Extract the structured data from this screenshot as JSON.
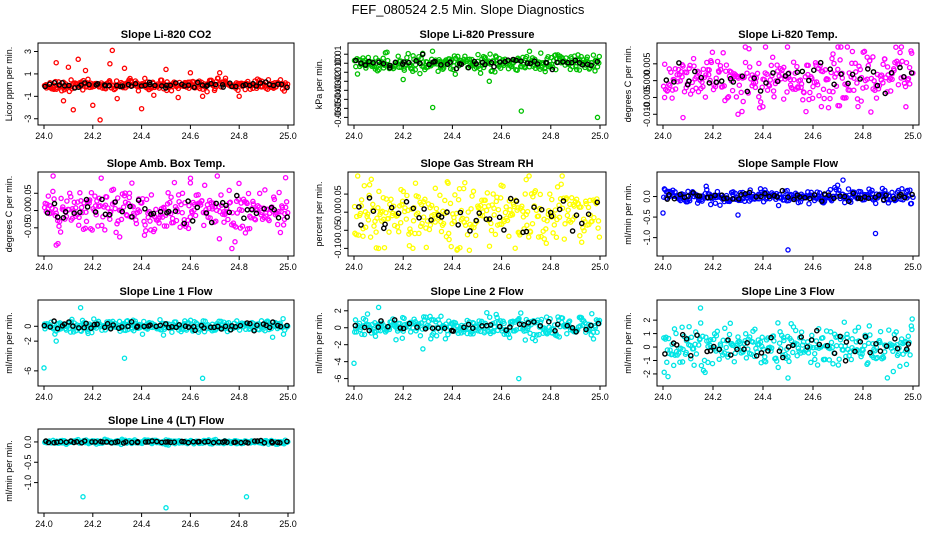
{
  "page": {
    "title": "FEF_080524  2.5 Min. Slope Diagnostics"
  },
  "colors": {
    "black": "#000000"
  },
  "chart_data": [
    {
      "type": "scatter",
      "title": "Slope Li-820 CO2",
      "ylabel": "Licor ppm per min.",
      "color": "#ff0000",
      "xlim": [
        24.0,
        25.0
      ],
      "ylim": [
        -3.2,
        3.4
      ],
      "xticks": [
        "24.0",
        "24.2",
        "24.4",
        "24.6",
        "24.8",
        "25.0"
      ],
      "yticks": [
        "-3",
        "-1",
        "1",
        "3"
      ],
      "band": {
        "center": 0.0,
        "spread": 0.45
      },
      "outliers": [
        [
          24.05,
          2.0
        ],
        [
          24.08,
          -1.4
        ],
        [
          24.1,
          1.6
        ],
        [
          24.12,
          -2.2
        ],
        [
          24.14,
          2.3
        ],
        [
          24.17,
          1.3
        ],
        [
          24.2,
          -1.8
        ],
        [
          24.23,
          -3.1
        ],
        [
          24.27,
          1.9
        ],
        [
          24.28,
          3.1
        ],
        [
          24.3,
          -1.2
        ],
        [
          24.33,
          1.5
        ],
        [
          24.4,
          -2.1
        ],
        [
          24.45,
          -0.9
        ],
        [
          24.5,
          1.4
        ],
        [
          24.55,
          -1.1
        ],
        [
          24.6,
          1.1
        ],
        [
          24.65,
          -1.0
        ],
        [
          24.72,
          1.1
        ],
        [
          24.8,
          -1.0
        ]
      ],
      "n_points": 300,
      "n_black": 60
    },
    {
      "type": "scatter",
      "title": "Slope Li-820 Pressure",
      "ylabel": "kPa per min.",
      "color": "#00c000",
      "xlim": [
        24.0,
        25.0
      ],
      "ylim": [
        -0.064,
        0.018
      ],
      "xticks": [
        "24.0",
        "24.2",
        "24.4",
        "24.6",
        "24.8",
        "25.0"
      ],
      "yticks": [
        "-0.06",
        "-0.05",
        "-0.04",
        "-0.03",
        "-0.02",
        "-0.01",
        "0.00",
        "0.01"
      ],
      "band": {
        "center": 0.0,
        "spread": 0.009
      },
      "outliers": [
        [
          24.32,
          -0.049
        ],
        [
          24.68,
          -0.053
        ],
        [
          24.99,
          -0.06
        ],
        [
          24.55,
          -0.02
        ],
        [
          24.2,
          -0.018
        ]
      ],
      "n_points": 300,
      "n_black": 55
    },
    {
      "type": "scatter",
      "title": "Slope Li-820 Temp.",
      "ylabel": "degrees C per min.",
      "color": "#ff00ff",
      "xlim": [
        24.0,
        25.0
      ],
      "ylim": [
        -0.012,
        0.01
      ],
      "xticks": [
        "24.0",
        "24.2",
        "24.4",
        "24.6",
        "24.8",
        "25.0"
      ],
      "yticks": [
        "-0.010",
        "-0.005",
        "0.000",
        "0.005"
      ],
      "band": {
        "center": 0.001,
        "spread": 0.008
      },
      "outliers": [
        [
          24.7,
          0.01
        ],
        [
          24.08,
          -0.011
        ],
        [
          24.3,
          -0.01
        ]
      ],
      "n_points": 300,
      "n_black": 40
    },
    {
      "type": "scatter",
      "title": "Slope Amb. Box Temp.",
      "ylabel": "degrees C per min.",
      "color": "#ff00ff",
      "xlim": [
        24.0,
        25.0
      ],
      "ylim": [
        -0.12,
        0.1
      ],
      "xticks": [
        "24.0",
        "24.2",
        "24.4",
        "24.6",
        "24.8",
        "25.0"
      ],
      "yticks": [
        "-0.05",
        "0.00",
        "0.05"
      ],
      "band": {
        "center": 0.0,
        "spread": 0.07
      },
      "outliers": [
        [
          24.99,
          0.095
        ],
        [
          24.77,
          -0.11
        ],
        [
          24.05,
          -0.1
        ],
        [
          24.6,
          0.08
        ]
      ],
      "n_points": 300,
      "n_black": 45
    },
    {
      "type": "scatter",
      "title": "Slope Gas Stream RH",
      "ylabel": "percent per min.",
      "color": "#ffff00",
      "xlim": [
        24.0,
        25.0
      ],
      "ylim": [
        -0.11,
        0.1
      ],
      "xticks": [
        "24.0",
        "24.2",
        "24.4",
        "24.6",
        "24.8",
        "25.0"
      ],
      "yticks": [
        "-0.10",
        "-0.05",
        "0.00",
        "0.05"
      ],
      "band": {
        "center": -0.01,
        "spread": 0.08
      },
      "outliers": [
        [
          24.25,
          0.08
        ],
        [
          24.7,
          0.09
        ],
        [
          24.1,
          -0.1
        ]
      ],
      "n_points": 300,
      "n_black": 40
    },
    {
      "type": "scatter",
      "title": "Slope Sample Flow",
      "ylabel": "ml/min per min.",
      "color": "#0000ff",
      "xlim": [
        24.0,
        25.0
      ],
      "ylim": [
        -1.35,
        0.5
      ],
      "xticks": [
        "24.0",
        "24.2",
        "24.4",
        "24.6",
        "24.8",
        "25.0"
      ],
      "yticks": [
        "-1.0",
        "-0.5",
        "0.0"
      ],
      "band": {
        "center": 0.0,
        "spread": 0.17
      },
      "outliers": [
        [
          24.5,
          -1.3
        ],
        [
          24.85,
          -0.9
        ],
        [
          24.0,
          -0.4
        ],
        [
          24.72,
          0.4
        ],
        [
          24.3,
          -0.45
        ]
      ],
      "n_points": 300,
      "n_black": 55
    },
    {
      "type": "scatter",
      "title": "Slope Line 1 Flow",
      "ylabel": "ml/min per min.",
      "color": "#00e5e5",
      "xlim": [
        24.0,
        25.0
      ],
      "ylim": [
        -7.5,
        3.0
      ],
      "xticks": [
        "24.0",
        "24.2",
        "24.4",
        "24.6",
        "24.8",
        "25.0"
      ],
      "yticks": [
        "-6",
        "-2",
        "0"
      ],
      "band": {
        "center": 0.0,
        "spread": 0.85
      },
      "outliers": [
        [
          24.65,
          -7.0
        ],
        [
          24.0,
          -5.6
        ],
        [
          24.33,
          -4.3
        ],
        [
          24.15,
          2.5
        ],
        [
          24.05,
          -2.0
        ]
      ],
      "n_points": 300,
      "n_black": 60
    },
    {
      "type": "scatter",
      "title": "Slope Line 2 Flow",
      "ylabel": "ml/min per min.",
      "color": "#00e5e5",
      "xlim": [
        24.0,
        25.0
      ],
      "ylim": [
        -6.4,
        2.8
      ],
      "xticks": [
        "24.0",
        "24.2",
        "24.4",
        "24.6",
        "24.8",
        "25.0"
      ],
      "yticks": [
        "-6",
        "-4",
        "-2",
        "0",
        "2"
      ],
      "band": {
        "center": 0.1,
        "spread": 1.2
      },
      "outliers": [
        [
          24.67,
          -6.0
        ],
        [
          24.0,
          -4.2
        ],
        [
          24.28,
          -2.5
        ],
        [
          24.1,
          2.4
        ]
      ],
      "n_points": 300,
      "n_black": 40
    },
    {
      "type": "scatter",
      "title": "Slope Line 3 Flow",
      "ylabel": "ml/min per min.",
      "color": "#00e5e5",
      "xlim": [
        24.0,
        25.0
      ],
      "ylim": [
        -2.6,
        3.2
      ],
      "xticks": [
        "24.0",
        "24.2",
        "24.4",
        "24.6",
        "24.8",
        "25.0"
      ],
      "yticks": [
        "-2",
        "-1",
        "0",
        "1",
        "2"
      ],
      "band": {
        "center": 0.0,
        "spread": 1.5
      },
      "outliers": [
        [
          24.15,
          2.9
        ],
        [
          24.5,
          -2.3
        ],
        [
          24.02,
          -2.2
        ]
      ],
      "n_points": 300,
      "n_black": 45
    },
    {
      "type": "scatter",
      "title": "Slope Line 4 (LT) Flow",
      "ylabel": "ml/min per min.",
      "color": "#00e5e5",
      "xlim": [
        24.0,
        25.0
      ],
      "ylim": [
        -1.65,
        0.22
      ],
      "xticks": [
        "24.0",
        "24.2",
        "24.4",
        "24.6",
        "24.8",
        "25.0"
      ],
      "yticks": [
        "-1.0",
        "-0.5",
        "0.0"
      ],
      "band": {
        "center": 0.0,
        "spread": 0.05
      },
      "outliers": [
        [
          24.16,
          -1.35
        ],
        [
          24.83,
          -1.35
        ],
        [
          24.5,
          -1.62
        ]
      ],
      "n_points": 300,
      "n_black": 60
    }
  ]
}
